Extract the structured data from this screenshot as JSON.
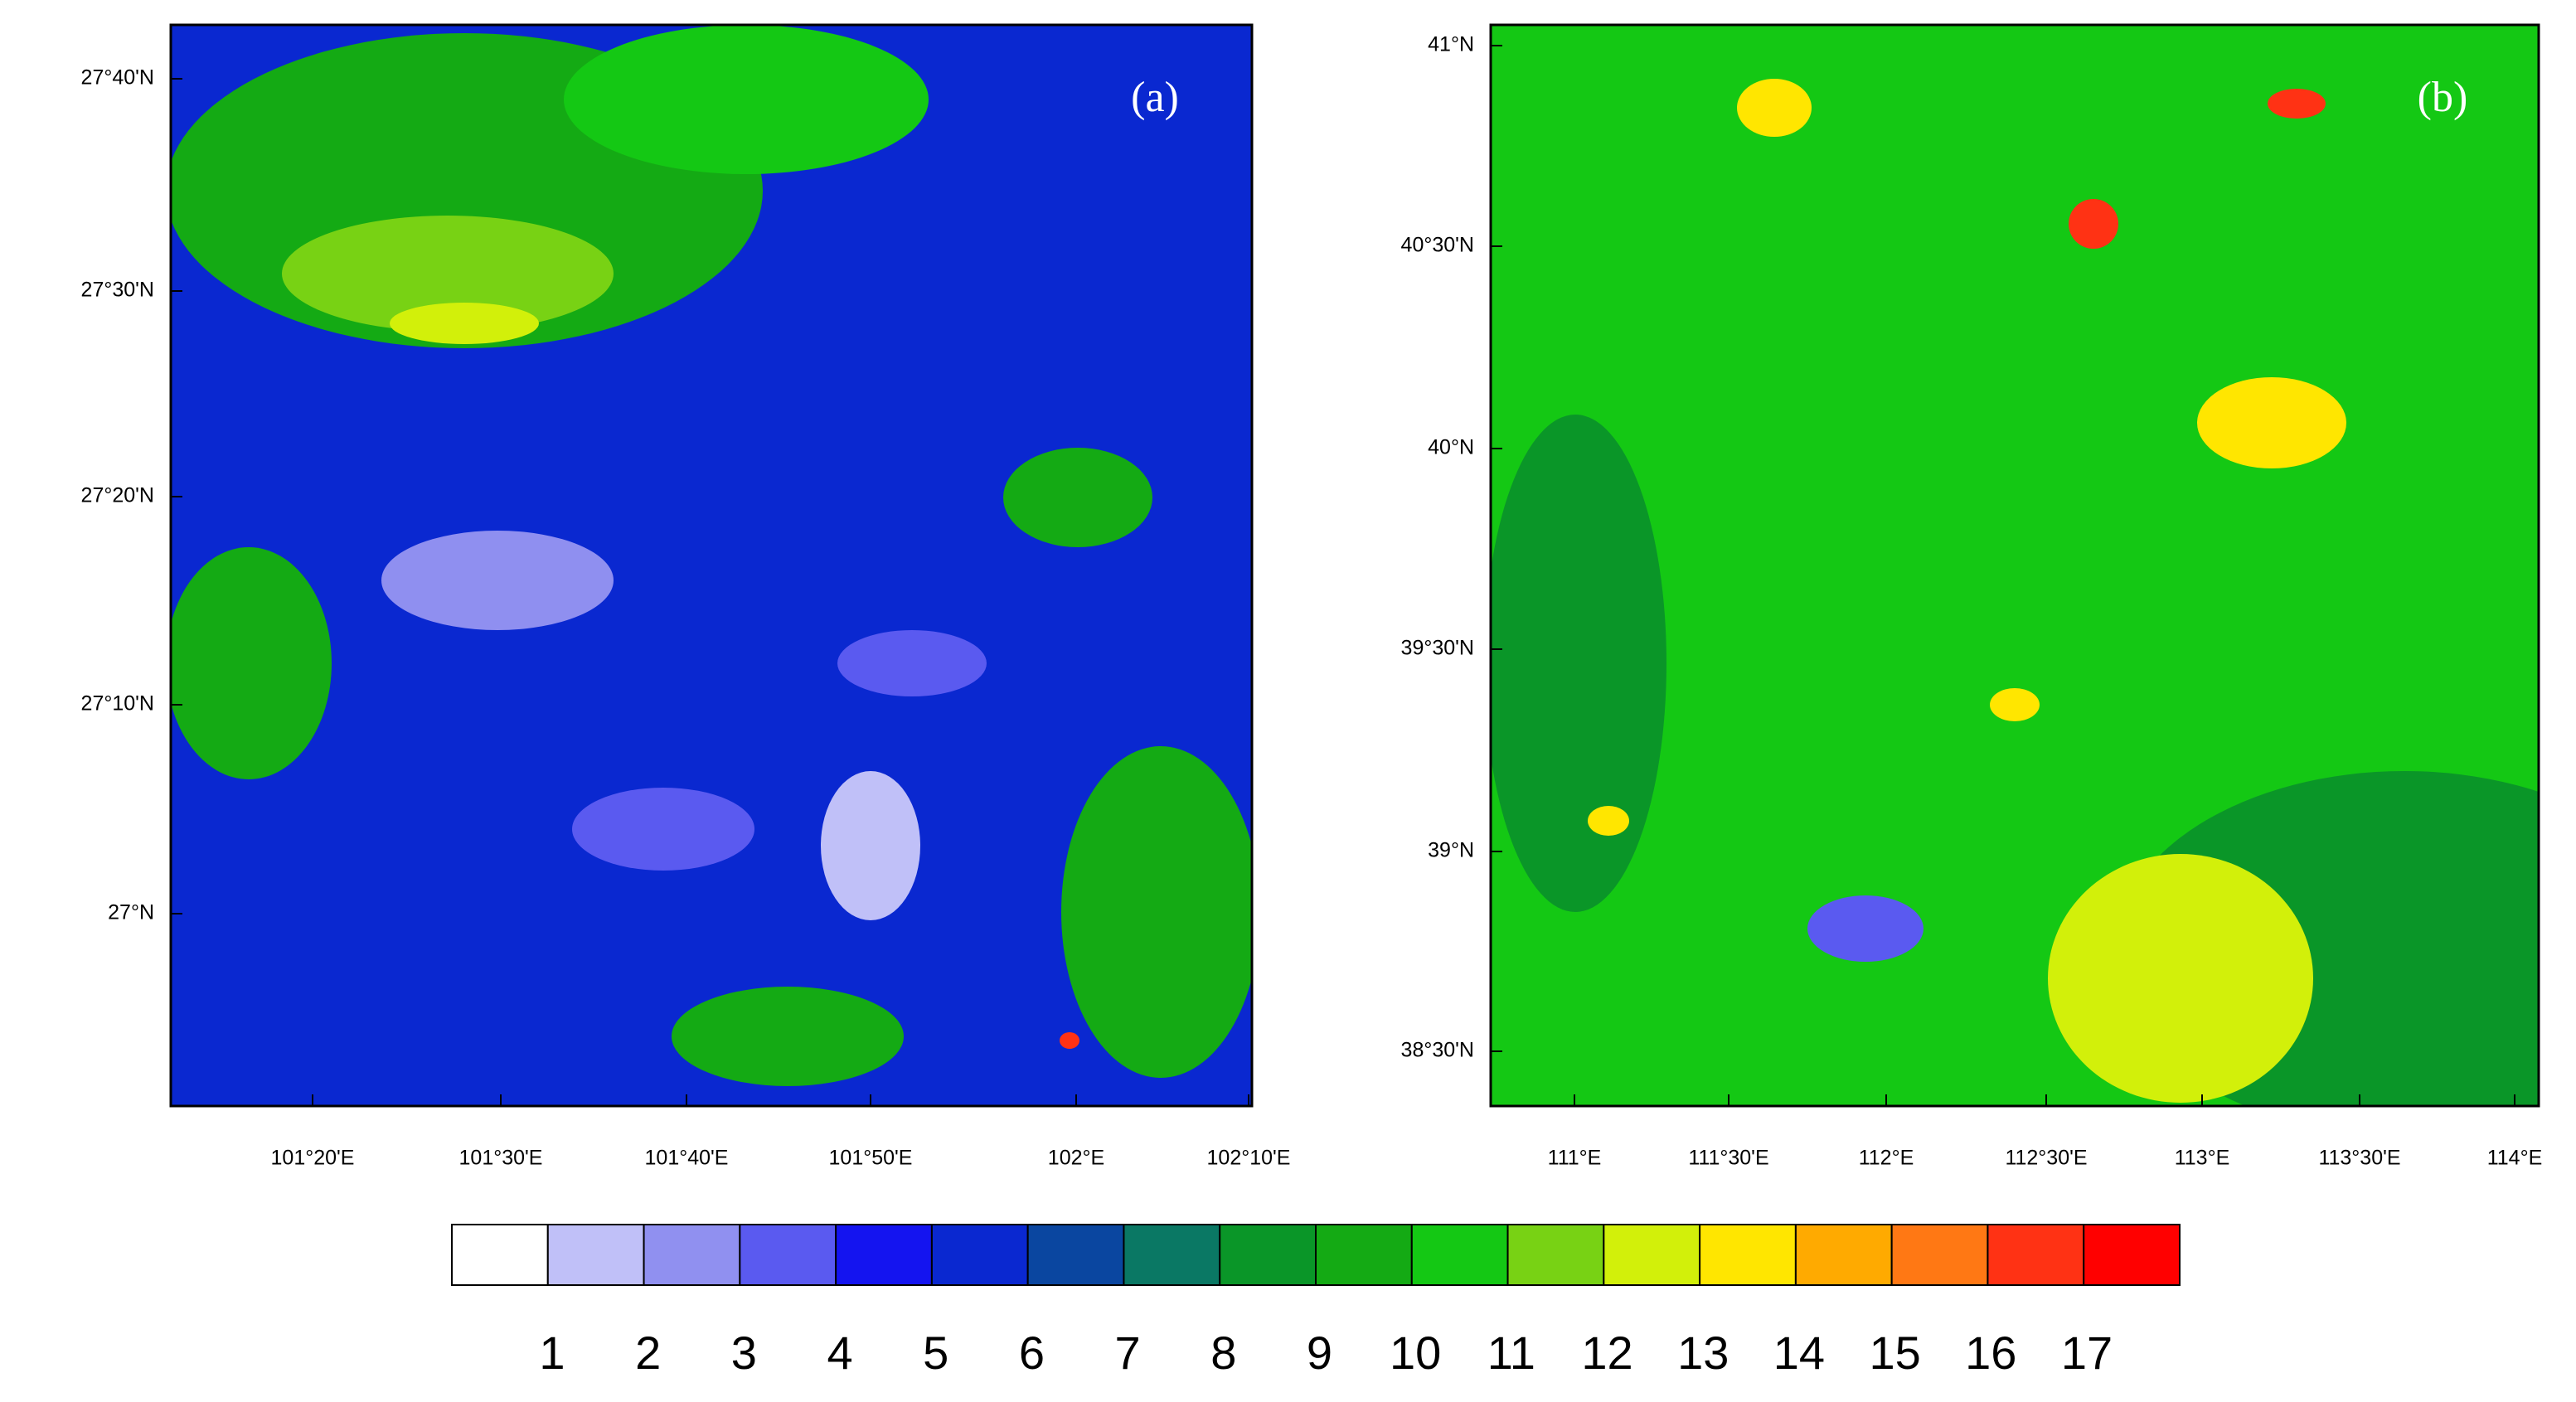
{
  "panels": [
    {
      "label": "(a)",
      "x_ticks": [
        "101°20'E",
        "101°30'E",
        "101°40'E",
        "101°50'E",
        "102°E",
        "102°10'E"
      ],
      "y_ticks": [
        "27°40'N",
        "27°30'N",
        "27°20'N",
        "27°10'N",
        "27°N"
      ]
    },
    {
      "label": "(b)",
      "x_ticks": [
        "111°E",
        "111°30'E",
        "112°E",
        "112°30'E",
        "113°E",
        "113°30'E",
        "114°E"
      ],
      "y_ticks": [
        "41°N",
        "40°30'N",
        "40°N",
        "39°30'N",
        "39°N",
        "38°30'N"
      ]
    }
  ],
  "colorbar": {
    "colors": [
      "#ffffff",
      "#c0c0f8",
      "#9090f0",
      "#5a5af0",
      "#1414f0",
      "#0a28d0",
      "#0a46a0",
      "#0a7864",
      "#0a9628",
      "#14aa14",
      "#14c814",
      "#78d214",
      "#d2f00a",
      "#ffe600",
      "#ffaa00",
      "#ff7814",
      "#ff3214",
      "#ff0000"
    ],
    "labels": [
      "1",
      "2",
      "3",
      "4",
      "5",
      "6",
      "7",
      "8",
      "9",
      "10",
      "11",
      "12",
      "13",
      "14",
      "15",
      "16",
      "17"
    ]
  }
}
